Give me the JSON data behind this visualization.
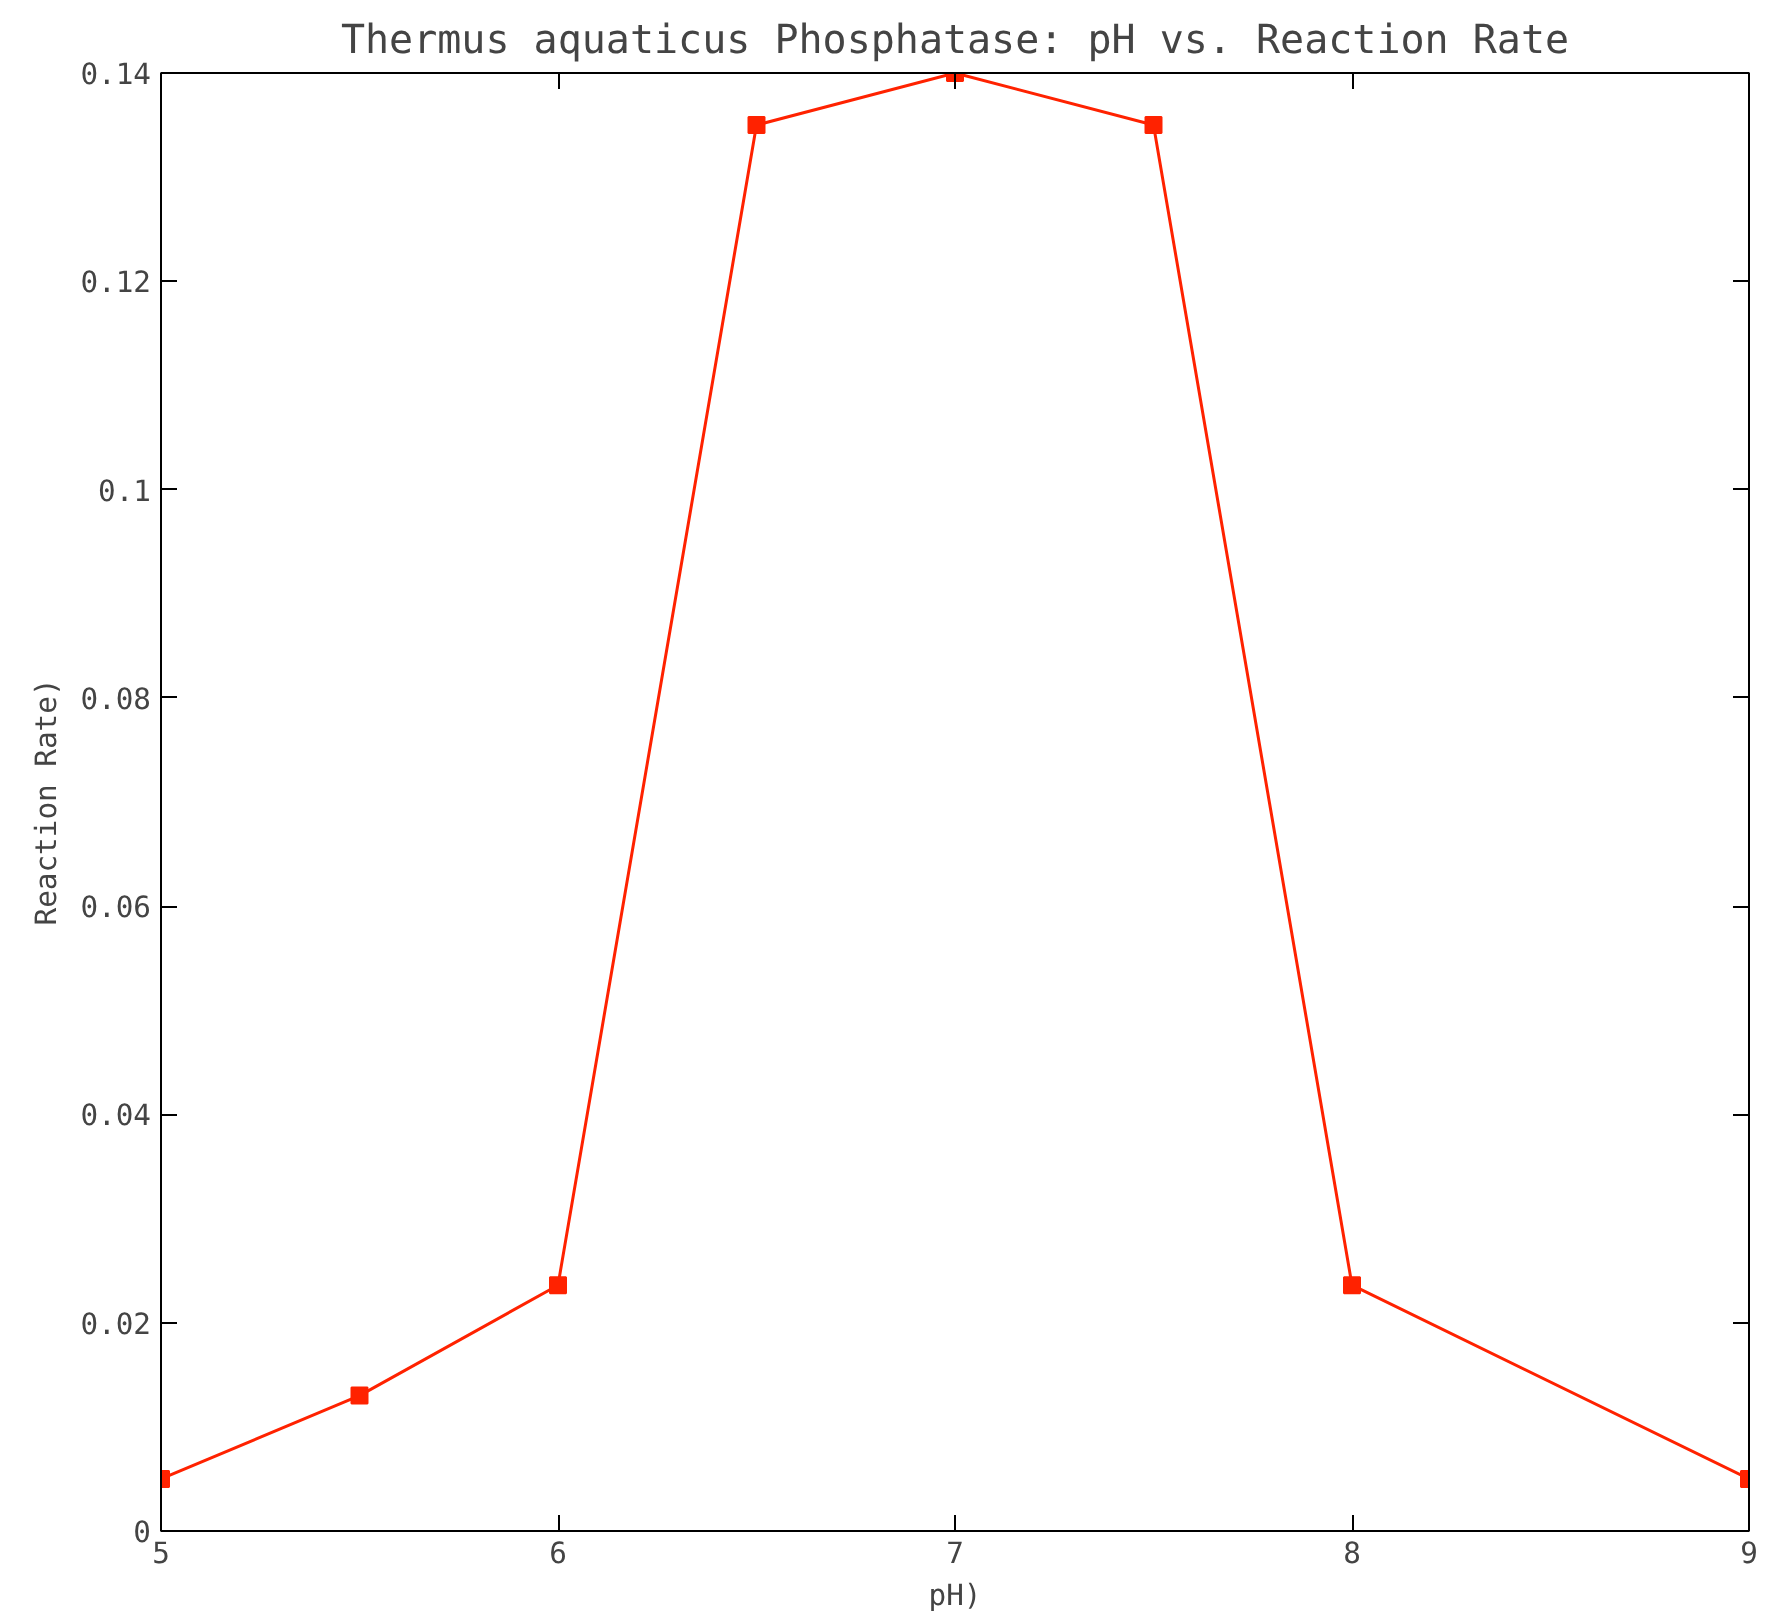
{
  "chart_data": {
    "type": "line",
    "title": "Thermus aquaticus Phosphatase: pH vs. Reaction Rate",
    "xlabel": "pH)",
    "ylabel": "Reaction Rate)",
    "x": [
      5,
      5.5,
      6,
      6.5,
      7,
      7.5,
      8,
      9
    ],
    "series": [
      {
        "color": "#ff2200",
        "values": [
          0.005,
          0.013,
          0.0236,
          0.135,
          0.14,
          0.135,
          0.0236,
          0.005
        ]
      }
    ],
    "xlim": [
      5,
      9
    ],
    "ylim": [
      0,
      0.14
    ],
    "xticks": [
      5,
      6,
      7,
      8,
      9
    ],
    "yticks": [
      0,
      0.02,
      0.04,
      0.06,
      0.08,
      0.1,
      0.12,
      0.14
    ],
    "marker": "square",
    "line_style": "solid"
  }
}
